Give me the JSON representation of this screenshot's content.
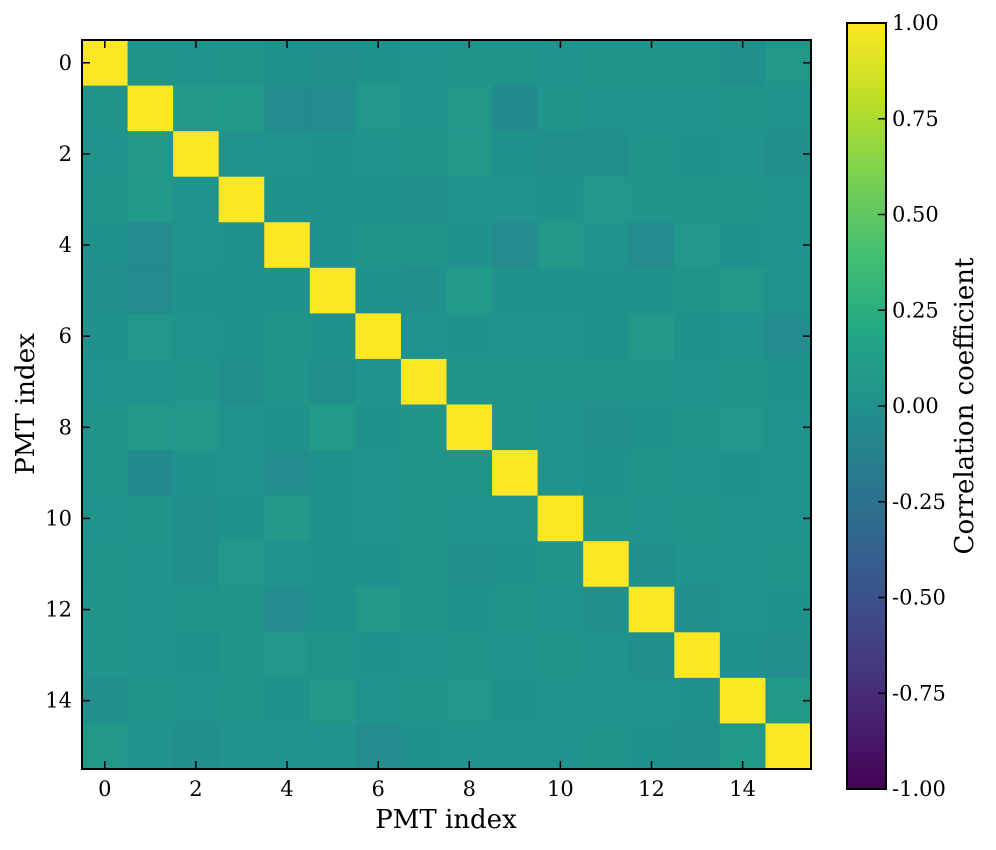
{
  "chart_data": {
    "type": "heatmap",
    "title": "",
    "xlabel": "PMT index",
    "ylabel": "PMT index",
    "x_ticks": [
      "0",
      "2",
      "4",
      "6",
      "8",
      "10",
      "12",
      "14"
    ],
    "y_ticks": [
      "0",
      "2",
      "4",
      "6",
      "8",
      "10",
      "12",
      "14"
    ],
    "colorbar": {
      "label": "Correlation coefficient",
      "range": [
        -1.0,
        1.0
      ],
      "ticks": [
        "1.00",
        "0.75",
        "0.50",
        "0.25",
        "0.00",
        "-0.25",
        "-0.50",
        "-0.75",
        "-1.00"
      ],
      "colormap": "viridis"
    },
    "matrix": [
      [
        1.0,
        0.02,
        0.01,
        0.02,
        0.0,
        -0.01,
        0.0,
        0.01,
        0.02,
        0.02,
        0.01,
        0.02,
        0.03,
        0.03,
        -0.01,
        0.05
      ],
      [
        0.02,
        1.0,
        0.06,
        0.07,
        -0.04,
        -0.03,
        0.04,
        0.01,
        0.05,
        -0.05,
        0.03,
        0.01,
        0.01,
        0.01,
        0.03,
        0.01
      ],
      [
        0.01,
        0.06,
        1.0,
        0.01,
        0.01,
        0.0,
        0.01,
        0.03,
        0.05,
        0.0,
        -0.01,
        -0.01,
        0.02,
        0.0,
        0.01,
        -0.02
      ],
      [
        0.02,
        0.07,
        0.01,
        1.0,
        0.0,
        0.0,
        0.0,
        -0.02,
        0.01,
        0.01,
        0.0,
        0.04,
        0.03,
        0.03,
        0.02,
        0.01
      ],
      [
        0.0,
        -0.04,
        0.01,
        0.0,
        1.0,
        0.0,
        0.02,
        0.02,
        0.0,
        -0.03,
        0.06,
        0.01,
        -0.04,
        0.04,
        0.0,
        0.01
      ],
      [
        -0.01,
        -0.03,
        0.0,
        0.0,
        0.0,
        1.0,
        0.0,
        -0.01,
        0.09,
        0.0,
        0.0,
        0.0,
        0.0,
        0.02,
        0.05,
        0.01
      ],
      [
        0.0,
        0.04,
        0.01,
        0.0,
        0.02,
        0.0,
        1.0,
        0.01,
        0.0,
        0.01,
        0.01,
        0.0,
        0.06,
        0.0,
        0.01,
        -0.03
      ],
      [
        0.01,
        0.01,
        0.03,
        -0.02,
        0.02,
        -0.01,
        0.01,
        1.0,
        0.03,
        0.02,
        0.02,
        0.02,
        0.02,
        0.01,
        0.02,
        0.0
      ],
      [
        0.02,
        0.05,
        0.05,
        0.01,
        0.0,
        0.09,
        0.0,
        0.03,
        1.0,
        0.02,
        0.01,
        -0.01,
        0.0,
        0.02,
        0.04,
        0.01
      ],
      [
        0.02,
        -0.05,
        0.0,
        0.01,
        -0.03,
        0.0,
        0.01,
        0.02,
        0.02,
        1.0,
        0.01,
        0.0,
        0.02,
        0.01,
        0.0,
        0.01
      ],
      [
        0.01,
        0.03,
        -0.01,
        0.0,
        0.06,
        0.0,
        0.01,
        0.02,
        0.01,
        0.01,
        1.0,
        0.03,
        0.01,
        0.02,
        0.01,
        0.01
      ],
      [
        0.02,
        0.01,
        -0.01,
        0.04,
        0.01,
        0.0,
        0.0,
        0.02,
        -0.01,
        0.0,
        0.03,
        1.0,
        -0.01,
        0.01,
        0.01,
        0.02
      ],
      [
        0.03,
        0.01,
        0.02,
        0.03,
        -0.04,
        0.0,
        0.06,
        0.02,
        0.0,
        0.02,
        0.01,
        -0.01,
        1.0,
        -0.01,
        0.01,
        0.0
      ],
      [
        0.03,
        0.01,
        0.0,
        0.03,
        0.04,
        0.02,
        0.0,
        0.01,
        0.02,
        0.01,
        0.02,
        0.01,
        -0.01,
        1.0,
        0.0,
        -0.02
      ],
      [
        -0.01,
        0.03,
        0.01,
        0.02,
        0.0,
        0.05,
        0.01,
        0.02,
        0.04,
        0.0,
        0.01,
        0.01,
        0.01,
        0.0,
        1.0,
        0.07
      ],
      [
        0.05,
        0.01,
        -0.02,
        0.01,
        0.01,
        0.01,
        -0.03,
        0.0,
        0.01,
        0.01,
        0.01,
        0.02,
        0.0,
        -0.02,
        0.07,
        1.0
      ]
    ]
  }
}
